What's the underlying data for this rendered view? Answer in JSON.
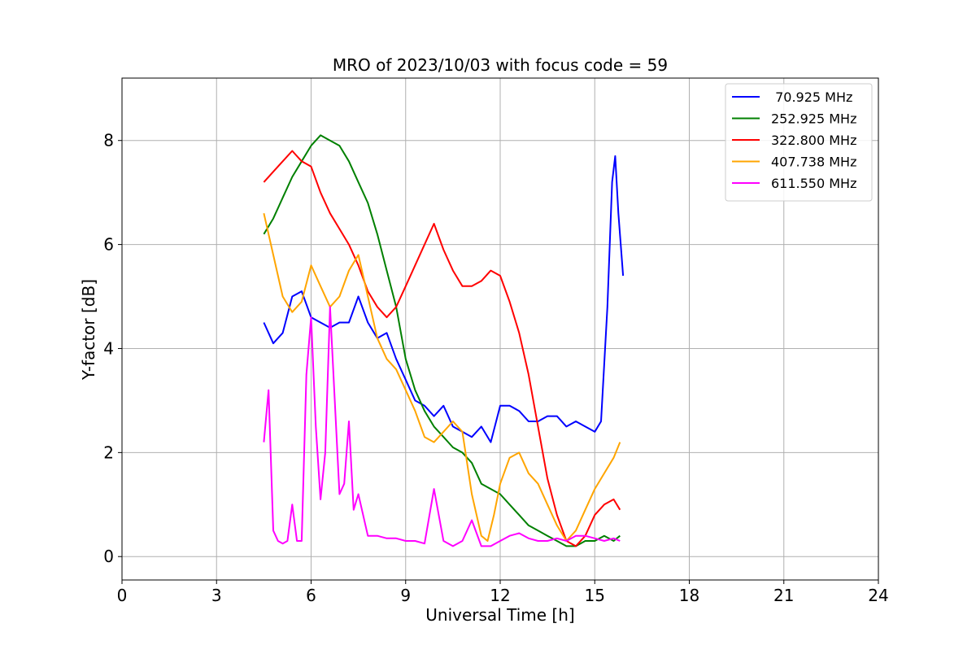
{
  "chart_data": {
    "type": "line",
    "title": "MRO of 2023/10/03 with focus code = 59",
    "xlabel": "Universal Time [h]",
    "ylabel": "Y-factor [dB]",
    "xlim": [
      0,
      24
    ],
    "ylim": [
      -0.45,
      9.2
    ],
    "xticks": [
      0,
      3,
      6,
      9,
      12,
      15,
      18,
      21,
      24
    ],
    "yticks": [
      0,
      2,
      4,
      6,
      8
    ],
    "grid": true,
    "legend_position": "top-right",
    "series": [
      {
        "name": " 70.925 MHz",
        "color": "#0000ff",
        "x": [
          4.5,
          4.8,
          5.1,
          5.4,
          5.7,
          6.0,
          6.3,
          6.6,
          6.9,
          7.2,
          7.5,
          7.8,
          8.1,
          8.4,
          8.7,
          9.0,
          9.3,
          9.6,
          9.9,
          10.2,
          10.5,
          10.8,
          11.1,
          11.4,
          11.7,
          12.0,
          12.3,
          12.6,
          12.9,
          13.2,
          13.5,
          13.8,
          14.1,
          14.4,
          14.7,
          15.0,
          15.2,
          15.4,
          15.55,
          15.65,
          15.75,
          15.9
        ],
        "y": [
          4.5,
          4.1,
          4.3,
          5.0,
          5.1,
          4.6,
          4.5,
          4.4,
          4.5,
          4.5,
          5.0,
          4.5,
          4.2,
          4.3,
          3.8,
          3.4,
          3.0,
          2.9,
          2.7,
          2.9,
          2.5,
          2.4,
          2.3,
          2.5,
          2.2,
          2.9,
          2.9,
          2.8,
          2.6,
          2.6,
          2.7,
          2.7,
          2.5,
          2.6,
          2.5,
          2.4,
          2.6,
          4.8,
          7.2,
          7.7,
          6.6,
          5.4
        ]
      },
      {
        "name": "252.925 MHz",
        "color": "#008000",
        "x": [
          4.5,
          4.8,
          5.1,
          5.4,
          5.7,
          6.0,
          6.3,
          6.6,
          6.9,
          7.2,
          7.5,
          7.8,
          8.1,
          8.4,
          8.7,
          9.0,
          9.3,
          9.6,
          9.9,
          10.2,
          10.5,
          10.8,
          11.1,
          11.4,
          11.7,
          12.0,
          12.3,
          12.6,
          12.9,
          13.2,
          13.5,
          13.8,
          14.1,
          14.4,
          14.7,
          15.0,
          15.3,
          15.6,
          15.8
        ],
        "y": [
          6.2,
          6.5,
          6.9,
          7.3,
          7.6,
          7.9,
          8.1,
          8.0,
          7.9,
          7.6,
          7.2,
          6.8,
          6.2,
          5.5,
          4.8,
          3.8,
          3.2,
          2.8,
          2.5,
          2.3,
          2.1,
          2.0,
          1.8,
          1.4,
          1.3,
          1.2,
          1.0,
          0.8,
          0.6,
          0.5,
          0.4,
          0.3,
          0.2,
          0.2,
          0.3,
          0.3,
          0.4,
          0.3,
          0.4
        ]
      },
      {
        "name": "322.800 MHz",
        "color": "#ff0000",
        "x": [
          4.5,
          4.8,
          5.1,
          5.4,
          5.7,
          6.0,
          6.3,
          6.6,
          6.9,
          7.2,
          7.5,
          7.8,
          8.1,
          8.4,
          8.7,
          9.0,
          9.3,
          9.6,
          9.9,
          10.2,
          10.5,
          10.8,
          11.1,
          11.4,
          11.7,
          12.0,
          12.3,
          12.6,
          12.9,
          13.2,
          13.5,
          13.8,
          14.1,
          14.4,
          14.7,
          15.0,
          15.3,
          15.6,
          15.8
        ],
        "y": [
          7.2,
          7.4,
          7.6,
          7.8,
          7.6,
          7.5,
          7.0,
          6.6,
          6.3,
          6.0,
          5.6,
          5.1,
          4.8,
          4.6,
          4.8,
          5.2,
          5.6,
          6.0,
          6.4,
          5.9,
          5.5,
          5.2,
          5.2,
          5.3,
          5.5,
          5.4,
          4.9,
          4.3,
          3.5,
          2.5,
          1.5,
          0.8,
          0.3,
          0.2,
          0.4,
          0.8,
          1.0,
          1.1,
          0.9
        ]
      },
      {
        "name": "407.738 MHz",
        "color": "#ffa500",
        "x": [
          4.5,
          4.8,
          5.1,
          5.4,
          5.7,
          6.0,
          6.3,
          6.6,
          6.9,
          7.2,
          7.5,
          7.8,
          8.1,
          8.4,
          8.7,
          9.0,
          9.3,
          9.6,
          9.9,
          10.2,
          10.5,
          10.8,
          11.1,
          11.4,
          11.6,
          11.8,
          12.0,
          12.3,
          12.6,
          12.9,
          13.2,
          13.5,
          13.8,
          14.1,
          14.4,
          14.7,
          15.0,
          15.3,
          15.6,
          15.8
        ],
        "y": [
          6.6,
          5.8,
          5.0,
          4.7,
          4.9,
          5.6,
          5.2,
          4.8,
          5.0,
          5.5,
          5.8,
          5.0,
          4.2,
          3.8,
          3.6,
          3.2,
          2.8,
          2.3,
          2.2,
          2.4,
          2.6,
          2.4,
          1.2,
          0.4,
          0.3,
          0.8,
          1.4,
          1.9,
          2.0,
          1.6,
          1.4,
          1.0,
          0.6,
          0.3,
          0.5,
          0.9,
          1.3,
          1.6,
          1.9,
          2.2
        ]
      },
      {
        "name": "611.550 MHz",
        "color": "#ff00ff",
        "x": [
          4.5,
          4.65,
          4.8,
          4.95,
          5.1,
          5.25,
          5.4,
          5.55,
          5.7,
          5.85,
          6.0,
          6.15,
          6.3,
          6.45,
          6.6,
          6.75,
          6.9,
          7.05,
          7.2,
          7.35,
          7.5,
          7.8,
          8.1,
          8.4,
          8.7,
          9.0,
          9.3,
          9.6,
          9.9,
          10.2,
          10.5,
          10.8,
          11.1,
          11.4,
          11.7,
          12.0,
          12.3,
          12.6,
          12.9,
          13.2,
          13.5,
          13.8,
          14.1,
          14.4,
          14.7,
          15.0,
          15.3,
          15.6,
          15.8
        ],
        "y": [
          2.2,
          3.2,
          0.5,
          0.3,
          0.25,
          0.3,
          1.0,
          0.3,
          0.3,
          3.5,
          4.6,
          2.5,
          1.1,
          2.0,
          4.8,
          3.0,
          1.2,
          1.4,
          2.6,
          0.9,
          1.2,
          0.4,
          0.4,
          0.35,
          0.35,
          0.3,
          0.3,
          0.25,
          1.3,
          0.3,
          0.2,
          0.3,
          0.7,
          0.2,
          0.2,
          0.3,
          0.4,
          0.45,
          0.35,
          0.3,
          0.3,
          0.35,
          0.3,
          0.4,
          0.4,
          0.35,
          0.3,
          0.35,
          0.3
        ]
      }
    ]
  }
}
